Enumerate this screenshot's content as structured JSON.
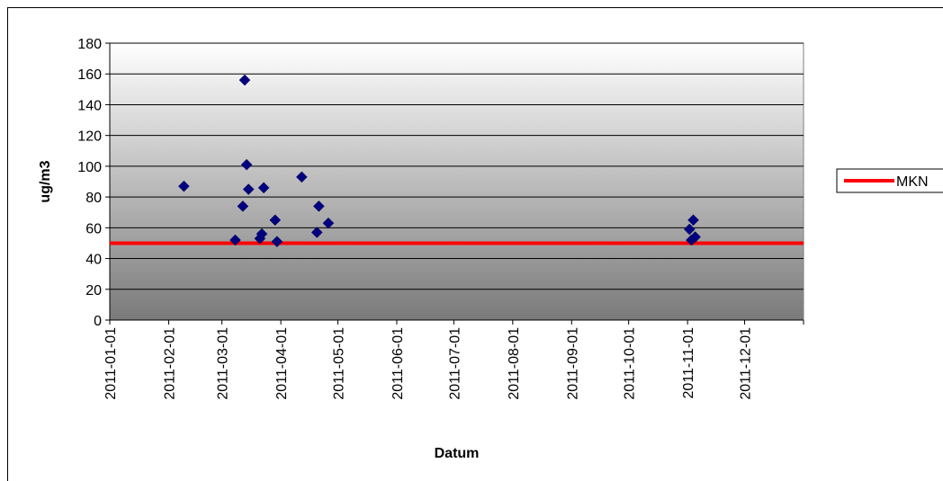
{
  "chart_data": {
    "type": "scatter",
    "xlabel": "Datum",
    "ylabel": "ug/m3",
    "ylim": [
      0,
      180
    ],
    "y_ticks": [
      0,
      20,
      40,
      60,
      80,
      100,
      120,
      140,
      160,
      180
    ],
    "xlim": [
      "2011-01-01",
      "2011-12-31"
    ],
    "x_ticks": [
      "2011-01-01",
      "2011-02-01",
      "2011-03-01",
      "2011-04-01",
      "2011-05-01",
      "2011-06-01",
      "2011-07-01",
      "2011-08-01",
      "2011-09-01",
      "2011-10-01",
      "2011-11-01",
      "2011-12-01"
    ],
    "grid": true,
    "legend_position": "right",
    "series": [
      {
        "color": "#000080",
        "marker": "diamond",
        "points": [
          {
            "x": "2011-02-09",
            "y": 87
          },
          {
            "x": "2011-03-08",
            "y": 52
          },
          {
            "x": "2011-03-12",
            "y": 74
          },
          {
            "x": "2011-03-13",
            "y": 156
          },
          {
            "x": "2011-03-14",
            "y": 101
          },
          {
            "x": "2011-03-15",
            "y": 85
          },
          {
            "x": "2011-03-21",
            "y": 53
          },
          {
            "x": "2011-03-22",
            "y": 56
          },
          {
            "x": "2011-03-23",
            "y": 86
          },
          {
            "x": "2011-03-29",
            "y": 65
          },
          {
            "x": "2011-03-30",
            "y": 51
          },
          {
            "x": "2011-04-12",
            "y": 93
          },
          {
            "x": "2011-04-20",
            "y": 57
          },
          {
            "x": "2011-04-21",
            "y": 74
          },
          {
            "x": "2011-04-26",
            "y": 63
          },
          {
            "x": "2011-11-02",
            "y": 59
          },
          {
            "x": "2011-11-03",
            "y": 52
          },
          {
            "x": "2011-11-04",
            "y": 65
          },
          {
            "x": "2011-11-05",
            "y": 54
          }
        ]
      },
      {
        "name": "MKN",
        "type": "line",
        "color": "#ff0000",
        "y_constant": 50
      }
    ]
  }
}
